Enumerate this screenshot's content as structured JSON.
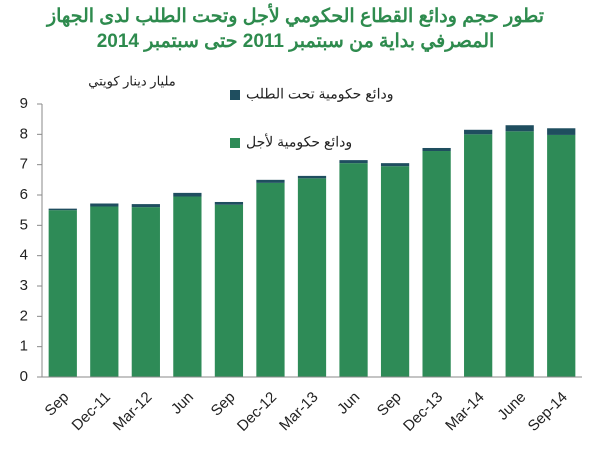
{
  "chart_data": {
    "type": "stacked-bar",
    "title": "تطور حجم  ودائع القطاع الحكومي لأجل وتحت الطلب لدى الجهاز المصرفي بداية من سبتمبر 2011 حتى سبتمبر 2014",
    "y_label": "مليار دينار كويتي",
    "categories": [
      "Sep",
      "Dec-11",
      "Mar-12",
      "Jun",
      "Sep",
      "Dec-12",
      "Mar-13",
      "Jun",
      "Sep",
      "Dec-13",
      "Mar-14",
      "June",
      "Sep-14"
    ],
    "series": [
      {
        "name": "ودائع حكومية لأجل",
        "color": "#2e8b57",
        "values": [
          5.5,
          5.62,
          5.6,
          5.95,
          5.68,
          6.4,
          6.55,
          7.05,
          6.95,
          7.45,
          8.0,
          8.1,
          7.98
        ]
      },
      {
        "name": "ودائع حكومية تحت الطلب",
        "color": "#1f4e5f",
        "values": [
          0.05,
          0.1,
          0.1,
          0.12,
          0.09,
          0.1,
          0.08,
          0.1,
          0.1,
          0.1,
          0.15,
          0.2,
          0.22
        ]
      }
    ],
    "ylim": [
      0,
      9
    ],
    "yticks": [
      0,
      1,
      2,
      3,
      4,
      5,
      6,
      7,
      8,
      9
    ],
    "legend": "top-center"
  }
}
